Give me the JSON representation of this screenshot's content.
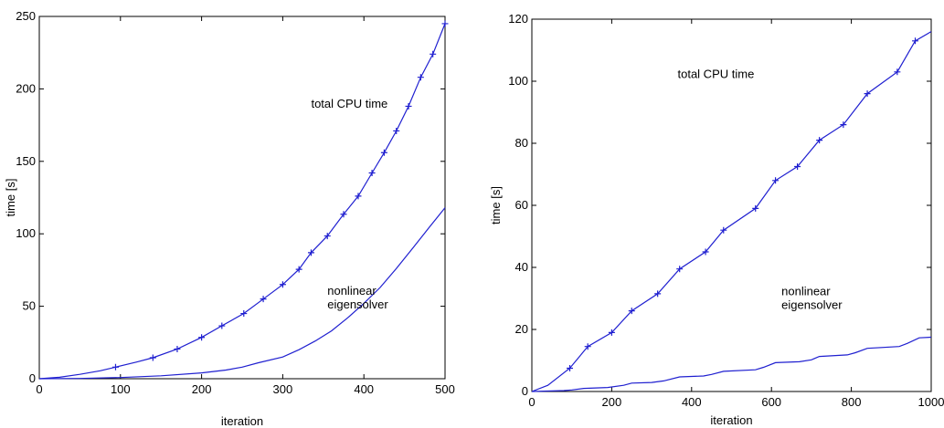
{
  "chart_data": [
    {
      "type": "line",
      "title": "",
      "xlabel": "iteration",
      "ylabel": "time [s]",
      "xlim": [
        0,
        500
      ],
      "ylim": [
        0,
        250
      ],
      "xticks": [
        0,
        100,
        200,
        300,
        400,
        500
      ],
      "yticks": [
        0,
        50,
        100,
        150,
        200,
        250
      ],
      "grid": false,
      "annotations": [
        {
          "lines": [
            "total CPU time"
          ],
          "x": 335,
          "y": 187
        },
        {
          "lines": [
            "nonlinear",
            "eigensolver"
          ],
          "x": 355,
          "y": 58
        }
      ],
      "series": [
        {
          "label": "total CPU time",
          "marker": "+",
          "x": [
            0,
            25,
            50,
            75,
            94,
            120,
            140,
            170,
            200,
            225,
            252,
            276,
            300,
            320,
            335,
            355,
            375,
            393,
            410,
            425,
            440,
            455,
            470,
            485,
            500
          ],
          "values": [
            0,
            1,
            3,
            5.5,
            8,
            11.5,
            14.5,
            20.5,
            28.5,
            36.5,
            45,
            55,
            65,
            75.5,
            87,
            98.5,
            113.5,
            126,
            142,
            156,
            171,
            188,
            208,
            224,
            245
          ],
          "marker_indices": [
            4,
            6,
            7,
            8,
            9,
            10,
            11,
            12,
            13,
            14,
            15,
            16,
            17,
            18,
            19,
            20,
            21,
            22,
            23,
            24
          ]
        },
        {
          "label": "nonlinear eigensolver",
          "marker": "none",
          "x": [
            0,
            50,
            100,
            150,
            200,
            230,
            250,
            270,
            300,
            320,
            340,
            360,
            380,
            400,
            420,
            440,
            460,
            480,
            500
          ],
          "values": [
            0,
            0.2,
            0.8,
            2,
            4,
            6,
            8,
            11,
            15,
            20,
            26,
            33,
            42,
            52,
            63,
            76,
            90,
            104,
            118
          ],
          "marker_indices": []
        }
      ]
    },
    {
      "type": "line",
      "title": "",
      "xlabel": "iteration",
      "ylabel": "time [s]",
      "xlim": [
        0,
        1000
      ],
      "ylim": [
        0,
        120
      ],
      "xticks": [
        0,
        200,
        400,
        600,
        800,
        1000
      ],
      "yticks": [
        0,
        20,
        40,
        60,
        80,
        100,
        120
      ],
      "grid": false,
      "annotations": [
        {
          "lines": [
            "total CPU time"
          ],
          "x": 365,
          "y": 101
        },
        {
          "lines": [
            "nonlinear",
            "eigensolver"
          ],
          "x": 625,
          "y": 31
        }
      ],
      "series": [
        {
          "label": "total CPU time",
          "marker": "+",
          "x": [
            0,
            40,
            95,
            140,
            200,
            250,
            315,
            370,
            435,
            480,
            560,
            610,
            665,
            720,
            780,
            840,
            915,
            960,
            1000
          ],
          "values": [
            0,
            2,
            7.5,
            14.5,
            19,
            26,
            31.5,
            39.5,
            45,
            52,
            59,
            68,
            72.5,
            81,
            86,
            96,
            103,
            113,
            116
          ],
          "marker_indices": [
            2,
            3,
            4,
            5,
            6,
            7,
            8,
            9,
            10,
            11,
            12,
            13,
            14,
            15,
            16,
            17
          ]
        },
        {
          "label": "nonlinear eigensolver",
          "marker": "none",
          "x": [
            0,
            80,
            100,
            130,
            190,
            230,
            250,
            300,
            330,
            370,
            430,
            450,
            480,
            560,
            580,
            610,
            670,
            700,
            720,
            790,
            810,
            840,
            920,
            940,
            970,
            1000
          ],
          "values": [
            0,
            0.3,
            0.5,
            1,
            1.3,
            2,
            2.7,
            2.9,
            3.4,
            4.7,
            5,
            5.5,
            6.5,
            7,
            7.8,
            9.3,
            9.6,
            10.2,
            11.3,
            11.8,
            12.5,
            13.9,
            14.5,
            15.5,
            17.3,
            17.5
          ],
          "marker_indices": []
        }
      ]
    }
  ],
  "style": {
    "line_color": "#1f1fd0",
    "axis_color": "#000000"
  }
}
